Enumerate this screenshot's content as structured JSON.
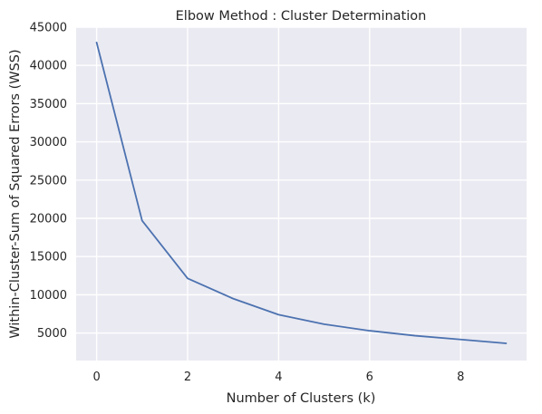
{
  "chart_data": {
    "type": "line",
    "title": "Elbow Method : Cluster Determination",
    "xlabel": "Number of Clusters (k)",
    "ylabel": "Within-Cluster-Sum of Squared Errors (WSS)",
    "x": [
      0,
      1,
      2,
      3,
      4,
      5,
      6,
      7,
      8,
      9
    ],
    "series": [
      {
        "values": [
          43000,
          19700,
          12150,
          9500,
          7400,
          6150,
          5300,
          4650,
          4150,
          3650
        ]
      }
    ],
    "xlim": [
      -0.45,
      9.45
    ],
    "ylim": [
      1400,
      45000
    ],
    "x_ticks": [
      0,
      2,
      4,
      6,
      8
    ],
    "y_ticks": [
      5000,
      10000,
      15000,
      20000,
      25000,
      30000,
      35000,
      40000,
      45000
    ],
    "x_tick_labels": [
      "0",
      "2",
      "4",
      "6",
      "8"
    ],
    "y_tick_labels": [
      "5000",
      "10000",
      "15000",
      "20000",
      "25000",
      "30000",
      "35000",
      "40000",
      "45000"
    ],
    "grid": true,
    "colors": {
      "background": "#eaeaf2",
      "grid": "#ffffff",
      "line": "#4c72b0"
    }
  }
}
